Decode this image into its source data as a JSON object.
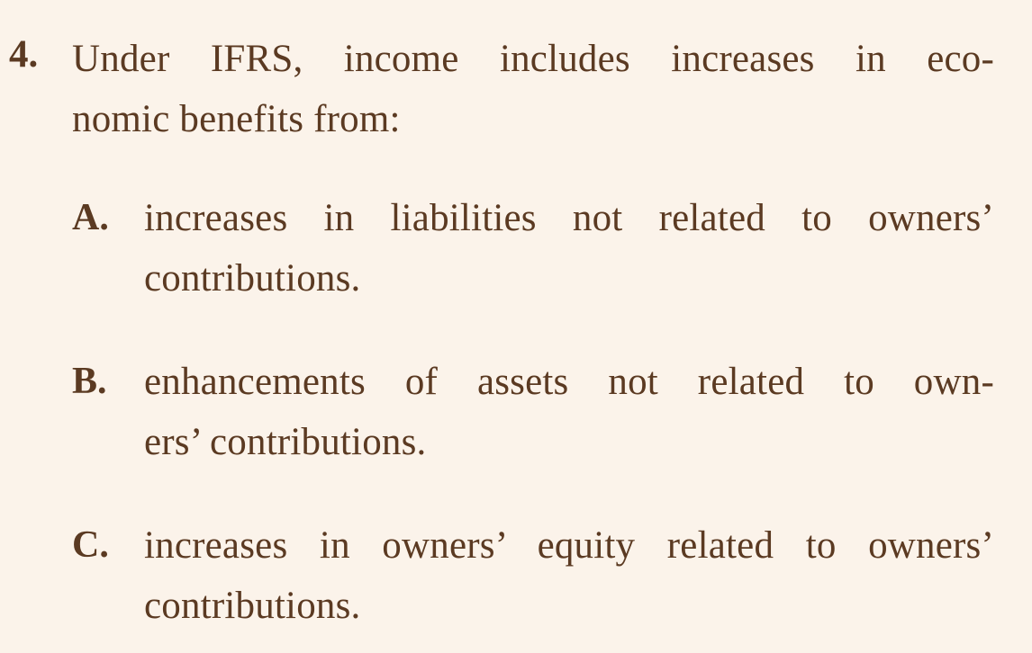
{
  "question": {
    "number": "4.",
    "line1": "Under IFRS, income includes increases in eco-",
    "line2": "nomic benefits from:"
  },
  "options": [
    {
      "letter": "A.",
      "line1": "increases in liabilities not related to owners’",
      "line2": "contributions."
    },
    {
      "letter": "B.",
      "line1": "enhancements of assets not related to own-",
      "line2": "ers’ contributions."
    },
    {
      "letter": "C.",
      "line1": "increases in owners’ equity related to owners’",
      "line2": "contributions."
    }
  ]
}
